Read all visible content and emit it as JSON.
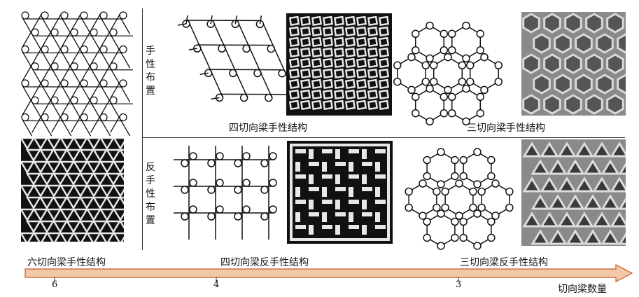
{
  "row_labels": {
    "chiral": "手性布置",
    "anti_chiral": "反手性布置"
  },
  "captions": {
    "hex_chiral": "六切向梁手性结构",
    "four_chiral": "四切向梁手性结构",
    "three_chiral": "三切向梁手性结构",
    "four_anti": "四切向梁反手性结构",
    "three_anti": "三切向梁反手性结构"
  },
  "axis": {
    "title": "切向梁数量",
    "ticks": [
      "6",
      "4",
      "3"
    ],
    "color": "#f2c9a6",
    "stroke": "#c85a28"
  },
  "photo_colors": {
    "dark": "#151515",
    "light": "#9a9a9a",
    "strut": "#e8e8e8"
  }
}
